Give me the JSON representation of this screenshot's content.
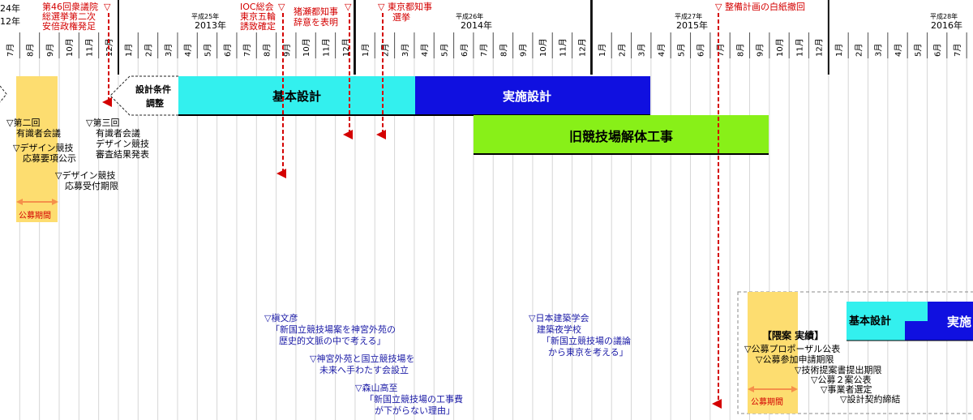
{
  "year_labels": [
    {
      "era": "",
      "year": "24年",
      "sub": "12年"
    },
    {
      "era": "平成25年",
      "year": "2013年"
    },
    {
      "era": "平成26年",
      "year": "2014年"
    },
    {
      "era": "平成27年",
      "year": "2015年"
    },
    {
      "era": "平成28年",
      "year": "2016年"
    }
  ],
  "months": [
    "7月",
    "8月",
    "9月",
    "10月",
    "11月",
    "12月",
    "1月",
    "2月",
    "3月",
    "4月",
    "5月",
    "6月",
    "7月",
    "8月",
    "9月",
    "10月",
    "11月",
    "12月",
    "1月",
    "2月",
    "3月",
    "4月",
    "5月",
    "6月",
    "7月",
    "8月",
    "9月",
    "10月",
    "11月",
    "12月",
    "1月",
    "2月",
    "3月",
    "4月",
    "5月",
    "6月",
    "7月",
    "8月",
    "9月",
    "10月",
    "11月",
    "12月",
    "1月",
    "2月",
    "3月",
    "4月",
    "5月",
    "6月",
    "7月"
  ],
  "events": [
    {
      "lines": [
        "第46回衆議院",
        "総選挙第二次",
        "安倍政権発足"
      ]
    },
    {
      "lines": [
        "IOC総会",
        "東京五輪",
        "誘致確定"
      ]
    },
    {
      "lines": [
        "猪瀬都知事",
        "辞意を表明"
      ]
    },
    {
      "lines": [
        "▽ 東京都知事",
        "選挙"
      ]
    },
    {
      "lines": [
        "▽ 整備計画の白紙撤回"
      ]
    }
  ],
  "phases": {
    "conditions": [
      "設計条件",
      "調整"
    ],
    "basic_design": "基本設計",
    "detailed_design": "実施設計",
    "demolition": "旧競技場解体工事"
  },
  "public_period_label": "公募期間",
  "notes_left": [
    {
      "lines": [
        "▽第二回",
        "有識者会議"
      ]
    },
    {
      "lines": [
        "▽デザイン競技",
        "応募要項公示"
      ]
    },
    {
      "lines": [
        "▽デザイン競技",
        "応募受付期限"
      ]
    },
    {
      "lines": [
        "▽第三回",
        "有識者会議",
        "デザイン競技",
        "審査結果発表"
      ]
    }
  ],
  "notes_blue": [
    {
      "lines": [
        "▽槇文彦",
        "「新国立競技場案を神宮外苑の",
        "歴史的文脈の中で考える」"
      ]
    },
    {
      "lines": [
        "▽神宮外苑と国立競技場を",
        "未来へ手わたす会設立"
      ]
    },
    {
      "lines": [
        "▽森山高至",
        "「新国立競技場の工事費",
        "が下がらない理由」"
      ]
    },
    {
      "lines": [
        "▽日本建築学会",
        "建築夜学校",
        "「新国立競技場の議論",
        "から東京を考える」"
      ]
    }
  ],
  "new_plan": {
    "title": "【隈案 実績】",
    "basic_design": "基本設計",
    "detailed_design": "実施",
    "steps": [
      "▽公募プロポーザル公表",
      "▽公募参加申請期限",
      "▽技術提案書提出期限",
      "▽公募２案公表",
      "▽事業者選定",
      "▽設計契約締結"
    ],
    "period_label": "公募期間"
  },
  "colors": {
    "event_red": "#d40000",
    "note_blue": "#1a1aa6",
    "basic_design": "#33f0ee",
    "detailed_design": "#1010e0",
    "demolition": "#88f018",
    "public_period": "#fddd70",
    "period_arrow": "#f5904a"
  }
}
